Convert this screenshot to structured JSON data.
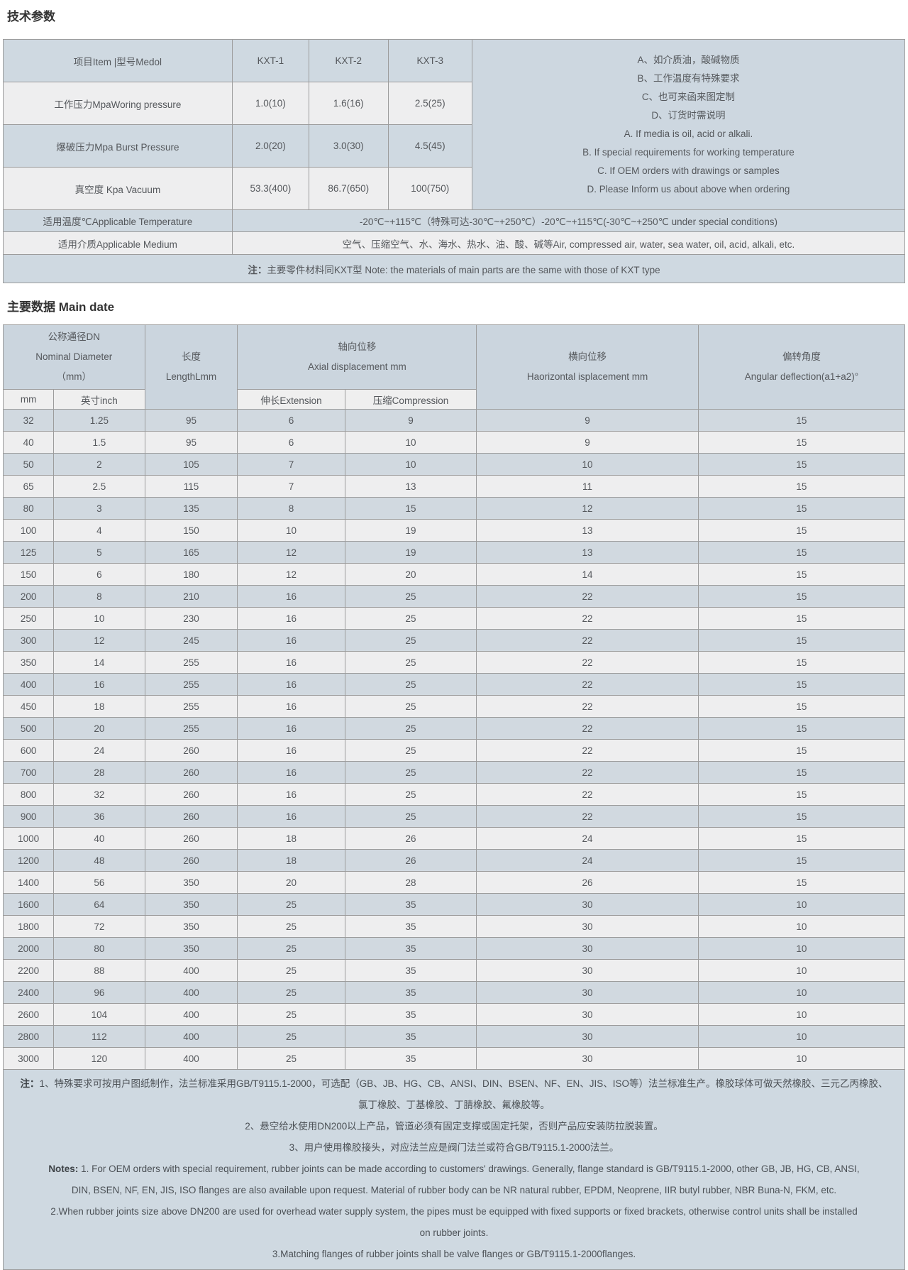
{
  "page": {
    "section1_title": "技术参数",
    "section2_title": "主要数据 Main date"
  },
  "colors": {
    "header_blue": "#cbd5de",
    "row_blue": "#d1d9e0",
    "row_light": "#eeeeef",
    "subheader_light": "#efefef",
    "border": "#9c9c9c"
  },
  "tech_table": {
    "item_header": "项目Item |型号Medol",
    "models": {
      "m1": "KXT-1",
      "m2": "KXT-2",
      "m3": "KXT-3"
    },
    "working_pressure": {
      "label": "工作压力MpaWoring pressure",
      "v1": "1.0(10)",
      "v2": "1.6(16)",
      "v3": "2.5(25)"
    },
    "burst_pressure": {
      "label": "爆破压力Mpa Burst Pressure",
      "v1": "2.0(20)",
      "v2": "3.0(30)",
      "v3": "4.5(45)"
    },
    "vacuum": {
      "label": "真空度 Kpa Vacuum",
      "v1": "53.3(400)",
      "v2": "86.7(650)",
      "v3": "100(750)"
    },
    "side_notes": [
      "A、如介质油，酸碱物质",
      "B、工作温度有特殊要求",
      "C、也可来函来图定制",
      "D、订货时需说明",
      "A. If media is oil, acid or alkali.",
      "B. If special requirements for working temperature",
      "C. If OEM orders with drawings or samples",
      "D. Please Inform us about above when ordering"
    ],
    "temperature": {
      "label": "适用温度℃Applicable Temperature",
      "value": "-20℃~+115℃（特殊可达-30℃~+250℃）-20℃~+115℃(-30℃~+250℃ under special conditions)"
    },
    "medium": {
      "label": "适用介质Applicable Medium",
      "value": "空气、压缩空气、水、海水、热水、油、酸、碱等Air, compressed air, water, sea water, oil, acid, alkali, etc."
    },
    "footnote": {
      "b": "注：",
      "t": "主要零件材料同KXT型 Note: the materials of main parts are the same with those of KXT type"
    }
  },
  "main_table": {
    "headers": {
      "dn": [
        "公称通径DN",
        "Nominal Diameter",
        "（mm）"
      ],
      "dn_sub_mm": "mm",
      "dn_sub_inch": "英寸inch",
      "length": [
        "长度",
        "LengthLmm"
      ],
      "axial": [
        "轴向位移",
        "Axial displacement mm"
      ],
      "axial_sub_ext": "伸长Extension",
      "axial_sub_comp": "压缩Compression",
      "horizontal": [
        "横向位移",
        "Haorizontal isplacement mm"
      ],
      "angular": [
        "偏转角度",
        "Angular deflection(a1+a2)°"
      ]
    },
    "rows": [
      [
        "32",
        "1.25",
        "95",
        "6",
        "9",
        "9",
        "15"
      ],
      [
        "40",
        "1.5",
        "95",
        "6",
        "10",
        "9",
        "15"
      ],
      [
        "50",
        "2",
        "105",
        "7",
        "10",
        "10",
        "15"
      ],
      [
        "65",
        "2.5",
        "115",
        "7",
        "13",
        "11",
        "15"
      ],
      [
        "80",
        "3",
        "135",
        "8",
        "15",
        "12",
        "15"
      ],
      [
        "100",
        "4",
        "150",
        "10",
        "19",
        "13",
        "15"
      ],
      [
        "125",
        "5",
        "165",
        "12",
        "19",
        "13",
        "15"
      ],
      [
        "150",
        "6",
        "180",
        "12",
        "20",
        "14",
        "15"
      ],
      [
        "200",
        "8",
        "210",
        "16",
        "25",
        "22",
        "15"
      ],
      [
        "250",
        "10",
        "230",
        "16",
        "25",
        "22",
        "15"
      ],
      [
        "300",
        "12",
        "245",
        "16",
        "25",
        "22",
        "15"
      ],
      [
        "350",
        "14",
        "255",
        "16",
        "25",
        "22",
        "15"
      ],
      [
        "400",
        "16",
        "255",
        "16",
        "25",
        "22",
        "15"
      ],
      [
        "450",
        "18",
        "255",
        "16",
        "25",
        "22",
        "15"
      ],
      [
        "500",
        "20",
        "255",
        "16",
        "25",
        "22",
        "15"
      ],
      [
        "600",
        "24",
        "260",
        "16",
        "25",
        "22",
        "15"
      ],
      [
        "700",
        "28",
        "260",
        "16",
        "25",
        "22",
        "15"
      ],
      [
        "800",
        "32",
        "260",
        "16",
        "25",
        "22",
        "15"
      ],
      [
        "900",
        "36",
        "260",
        "16",
        "25",
        "22",
        "15"
      ],
      [
        "1000",
        "40",
        "260",
        "18",
        "26",
        "24",
        "15"
      ],
      [
        "1200",
        "48",
        "260",
        "18",
        "26",
        "24",
        "15"
      ],
      [
        "1400",
        "56",
        "350",
        "20",
        "28",
        "26",
        "15"
      ],
      [
        "1600",
        "64",
        "350",
        "25",
        "35",
        "30",
        "10"
      ],
      [
        "1800",
        "72",
        "350",
        "25",
        "35",
        "30",
        "10"
      ],
      [
        "2000",
        "80",
        "350",
        "25",
        "35",
        "30",
        "10"
      ],
      [
        "2200",
        "88",
        "400",
        "25",
        "35",
        "30",
        "10"
      ],
      [
        "2400",
        "96",
        "400",
        "25",
        "35",
        "30",
        "10"
      ],
      [
        "2600",
        "104",
        "400",
        "25",
        "35",
        "30",
        "10"
      ],
      [
        "2800",
        "112",
        "400",
        "25",
        "35",
        "30",
        "10"
      ],
      [
        "3000",
        "120",
        "400",
        "25",
        "35",
        "30",
        "10"
      ]
    ],
    "bottom_notes": [
      {
        "b": "注：",
        "t": "1、特殊要求可按用户图纸制作，法兰标准采用GB/T9115.1-2000，可选配（GB、JB、HG、CB、ANSI、DIN、BSEN、NF、EN、JIS、ISO等）法兰标准生产。橡胶球体可做天然橡胶、三元乙丙橡胶、"
      },
      "氯丁橡胶、丁基橡胶、丁腈橡胶、氟橡胶等。",
      "2、悬空给水使用DN200以上产品，管道必须有固定支撑或固定托架，否则产品应安装防拉脱装置。",
      "3、用户使用橡胶接头，对应法兰应是阀门法兰或符合GB/T9115.1-2000法兰。",
      {
        "b": "Notes:",
        "t": " 1. For OEM orders with special requirement, rubber joints can be made according to customers' drawings. Generally, flange standard is GB/T9115.1-2000, other GB, JB, HG, CB, ANSI,"
      },
      "DIN, BSEN, NF, EN, JIS, ISO flanges are also available upon request. Material of rubber body can be NR natural rubber, EPDM, Neoprene, IIR butyl rubber, NBR Buna-N, FKM, etc.",
      "2.When rubber joints size above DN200 are used for overhead water supply system, the pipes must be equipped with fixed supports or fixed brackets, otherwise control units shall be installed",
      "on rubber joints.",
      "3.Matching flanges of rubber joints shall be valve flanges or GB/T9115.1-2000flanges."
    ]
  }
}
